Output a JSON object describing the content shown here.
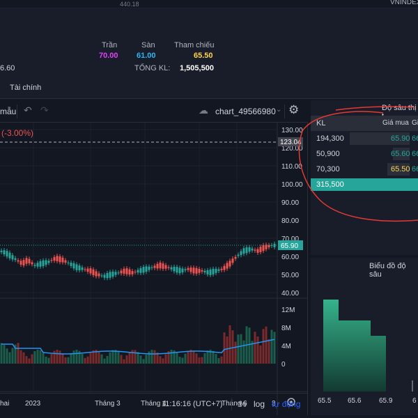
{
  "top": {
    "price_fragment": "440.18",
    "index_fragment": "VNINDEX"
  },
  "header": {
    "last_fragment": "6.60",
    "ceiling_label": "Trần",
    "ceiling_value": "70.00",
    "floor_label": "Sàn",
    "floor_value": "61.00",
    "ref_label": "Tham chiếu",
    "ref_value": "65.50",
    "total_volume_label": "TỔNG KL:",
    "total_volume_value": "1,505,500"
  },
  "tabs": {
    "finance": "Tài chính"
  },
  "toolbar": {
    "template_label": "mẫu",
    "chart_name": "chart_49566980"
  },
  "chart": {
    "change_text": "(-3.00%)",
    "price_axis_ticks": [
      "130.00",
      "120.00",
      "110.00",
      "100.00",
      "90.00",
      "80.00",
      "70.00",
      "60.00",
      "50.00",
      "40.00"
    ],
    "hline_label": "123.04",
    "last_price_label": "65.90",
    "volume_axis_ticks": [
      "12M",
      "8M",
      "4M",
      "0"
    ],
    "time_labels": [
      "hai",
      "2023",
      "Tháng 3",
      "Tháng 4",
      "Tháng 6",
      "3"
    ]
  },
  "status": {
    "time": "11:16:16 (UTC+7)",
    "percent": "%",
    "log": "log",
    "auto": "tự động"
  },
  "depth": {
    "title": "Độ sâu thị t",
    "col_kl": "KL",
    "col_buy": "Giá mua",
    "col_sell_fragment": "Gi",
    "rows": [
      {
        "kl": "194,300",
        "price": "65.90",
        "cut": "66"
      },
      {
        "kl": "50,900",
        "price": "65.60",
        "cut": "66"
      },
      {
        "kl": "70,300",
        "price": "65.50",
        "cut": "66"
      }
    ],
    "total": "315,500"
  },
  "depth_chart": {
    "title": "Biểu đồ độ sâu",
    "x_labels": [
      "65.5",
      "65.6",
      "65.9",
      "6"
    ]
  },
  "colors": {
    "up": "#26a69a",
    "down": "#ef5350",
    "volume_ma": "#2196f3",
    "ceiling": "#e040fb",
    "floor": "#29b6f6",
    "ref": "#ffd54f",
    "annotation": "#e53935"
  }
}
